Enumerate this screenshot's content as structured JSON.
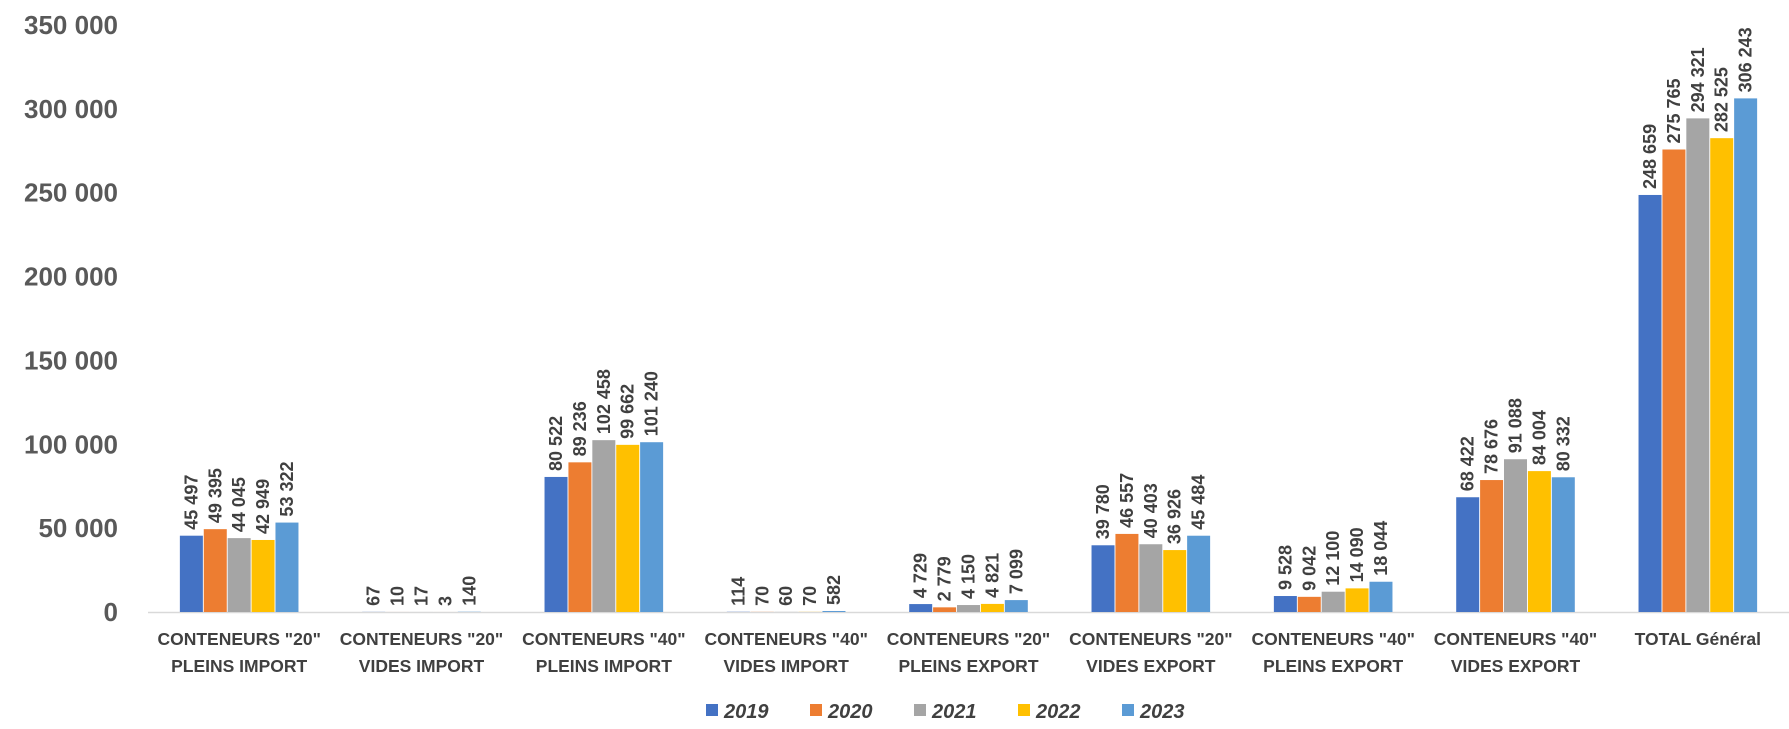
{
  "chart_data": {
    "type": "bar",
    "title": "",
    "xlabel": "",
    "ylabel": "",
    "ylim": [
      0,
      350000
    ],
    "yticks": [
      0,
      50000,
      100000,
      150000,
      200000,
      250000,
      300000,
      350000
    ],
    "ytick_labels": [
      "0",
      "50 000",
      "100 000",
      "150 000",
      "200 000",
      "250 000",
      "300 000",
      "350 000"
    ],
    "grid": false,
    "legend": "bottom",
    "categories": [
      [
        "CONTENEURS \"20\"",
        "PLEINS IMPORT"
      ],
      [
        "CONTENEURS \"20\"",
        "VIDES IMPORT"
      ],
      [
        "CONTENEURS \"40\"",
        "PLEINS IMPORT"
      ],
      [
        "CONTENEURS \"40\"",
        "VIDES IMPORT"
      ],
      [
        "CONTENEURS \"20\"",
        "PLEINS EXPORT"
      ],
      [
        "CONTENEURS \"20\"",
        "VIDES EXPORT"
      ],
      [
        "CONTENEURS \"40\"",
        "PLEINS EXPORT"
      ],
      [
        "CONTENEURS \"40\"",
        "VIDES EXPORT"
      ],
      [
        "TOTAL Général"
      ]
    ],
    "series": [
      {
        "name": "2019",
        "color": "#4472C4",
        "values": [
          45497,
          67,
          80522,
          114,
          4729,
          39780,
          9528,
          68422,
          248659
        ],
        "labels": [
          "45 497",
          "67",
          "80 522",
          "114",
          "4 729",
          "39 780",
          "9 528",
          "68 422",
          "248 659"
        ]
      },
      {
        "name": "2020",
        "color": "#ED7D31",
        "values": [
          49395,
          10,
          89236,
          70,
          2779,
          46557,
          9042,
          78676,
          275765
        ],
        "labels": [
          "49 395",
          "10",
          "89 236",
          "70",
          "2 779",
          "46 557",
          "9 042",
          "78 676",
          "275 765"
        ]
      },
      {
        "name": "2021",
        "color": "#A5A5A5",
        "values": [
          44045,
          17,
          102458,
          60,
          4150,
          40403,
          12100,
          91088,
          294321
        ],
        "labels": [
          "44 045",
          "17",
          "102 458",
          "60",
          "4 150",
          "40 403",
          "12 100",
          "91 088",
          "294 321"
        ]
      },
      {
        "name": "2022",
        "color": "#FFC000",
        "values": [
          42949,
          3,
          99662,
          70,
          4821,
          36926,
          14090,
          84004,
          282525
        ],
        "labels": [
          "42 949",
          "3",
          "99 662",
          "70",
          "4 821",
          "36 926",
          "14 090",
          "84 004",
          "282 525"
        ]
      },
      {
        "name": "2023",
        "color": "#5B9BD5",
        "values": [
          53322,
          140,
          101240,
          582,
          7099,
          45484,
          18044,
          80332,
          306243
        ],
        "labels": [
          "53 322",
          "140",
          "101 240",
          "582",
          "7 099",
          "45 484",
          "18 044",
          "80 332",
          "306 243"
        ]
      }
    ]
  }
}
